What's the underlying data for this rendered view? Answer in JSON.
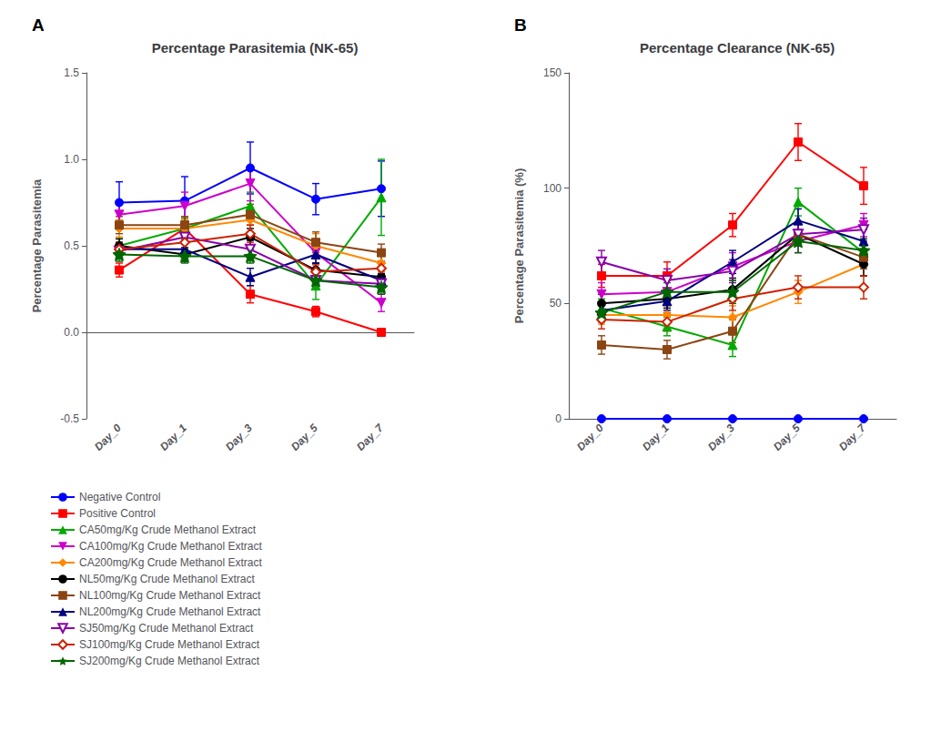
{
  "chart_data": [
    {
      "type": "line",
      "title": "Percentage Parasitemia (NK-65)",
      "ylabel": "Percentage Parasitemia",
      "annotations": [
        "A"
      ],
      "categories": [
        "Day_0",
        "Day_1",
        "Day_3",
        "Day_5",
        "Day_7"
      ],
      "ylim": [
        -0.5,
        1.5
      ],
      "yticks": [
        -0.5,
        {
          "value": 0,
          "label": "0.0"
        },
        0.5,
        {
          "value": 1,
          "label": "1.0"
        },
        1.5
      ],
      "grid": false,
      "legend": "bottom",
      "series": [
        {
          "name": "Negative Control",
          "color": "#0000FF",
          "marker": "circle",
          "values": [
            0.75,
            0.76,
            0.95,
            0.77,
            0.83
          ],
          "errors": [
            0.12,
            0.14,
            0.15,
            0.09,
            0.16
          ]
        },
        {
          "name": "Positive Control",
          "color": "#FF0000",
          "marker": "square",
          "values": [
            0.36,
            0.6,
            0.22,
            0.12,
            0.0
          ],
          "errors": [
            0.04,
            0.07,
            0.05,
            0.03,
            0.01
          ]
        },
        {
          "name": "CA50mg/Kg Crude Methanol Extract",
          "color": "#00AA00",
          "marker": "triangle-up",
          "values": [
            0.5,
            0.6,
            0.73,
            0.27,
            0.78
          ],
          "errors": [
            0.05,
            0.06,
            0.08,
            0.08,
            0.22
          ]
        },
        {
          "name": "CA100mg/Kg Crude Methanol Extract",
          "color": "#CC00CC",
          "marker": "triangle-down",
          "values": [
            0.68,
            0.73,
            0.86,
            0.46,
            0.17
          ],
          "errors": [
            0.07,
            0.08,
            0.1,
            0.06,
            0.05
          ]
        },
        {
          "name": "CA200mg/Kg Crude Methanol Extract",
          "color": "#FF8800",
          "marker": "diamond",
          "values": [
            0.6,
            0.6,
            0.65,
            0.5,
            0.4
          ],
          "errors": [
            0.05,
            0.05,
            0.07,
            0.07,
            0.05
          ]
        },
        {
          "name": "NL50mg/Kg Crude Methanol Extract",
          "color": "#000000",
          "marker": "circle",
          "values": [
            0.5,
            0.45,
            0.55,
            0.36,
            0.32
          ],
          "errors": [
            0.04,
            0.04,
            0.05,
            0.04,
            0.04
          ]
        },
        {
          "name": "NL100mg/Kg Crude Methanol Extract",
          "color": "#8B4513",
          "marker": "square",
          "values": [
            0.62,
            0.62,
            0.68,
            0.52,
            0.46
          ],
          "errors": [
            0.05,
            0.05,
            0.06,
            0.06,
            0.05
          ]
        },
        {
          "name": "NL200mg/Kg Crude Methanol Extract",
          "color": "#000080",
          "marker": "triangle-up",
          "values": [
            0.48,
            0.48,
            0.32,
            0.45,
            0.3
          ],
          "errors": [
            0.04,
            0.04,
            0.05,
            0.05,
            0.04
          ]
        },
        {
          "name": "SJ50mg/Kg Crude Methanol Extract",
          "color": "#8800AA",
          "marker": "open-triangle-down",
          "values": [
            0.47,
            0.55,
            0.48,
            0.3,
            0.28
          ],
          "errors": [
            0.04,
            0.04,
            0.05,
            0.04,
            0.04
          ]
        },
        {
          "name": "SJ100mg/Kg Crude Methanol Extract",
          "color": "#CC2200",
          "marker": "open-diamond",
          "values": [
            0.48,
            0.52,
            0.57,
            0.35,
            0.37
          ],
          "errors": [
            0.04,
            0.04,
            0.05,
            0.04,
            0.04
          ]
        },
        {
          "name": "SJ200mg/Kg Crude Methanol Extract",
          "color": "#006600",
          "marker": "star",
          "values": [
            0.45,
            0.44,
            0.44,
            0.3,
            0.26
          ],
          "errors": [
            0.04,
            0.04,
            0.04,
            0.04,
            0.04
          ]
        }
      ]
    },
    {
      "type": "line",
      "title": "Percentage Clearance (NK-65)",
      "ylabel": "Percentage Parasitemia (%)",
      "annotations": [
        "B"
      ],
      "categories": [
        "Day_0",
        "Day_1",
        "Day_3",
        "Day_5",
        "Day_7"
      ],
      "ylim": [
        0,
        150
      ],
      "yticks": [
        0,
        50,
        100,
        150
      ],
      "grid": false,
      "series": [
        {
          "name": "Negative Control",
          "color": "#0000FF",
          "marker": "circle",
          "values": [
            0,
            0,
            0,
            0,
            0
          ],
          "errors": [
            0,
            0,
            0,
            0,
            0
          ]
        },
        {
          "name": "Positive Control",
          "color": "#FF0000",
          "marker": "square",
          "values": [
            62,
            62,
            84,
            120,
            101
          ],
          "errors": [
            5,
            6,
            5,
            8,
            8
          ]
        },
        {
          "name": "CA50mg/Kg Crude Methanol Extract",
          "color": "#00AA00",
          "marker": "triangle-up",
          "values": [
            48,
            40,
            32,
            94,
            72
          ],
          "errors": [
            4,
            4,
            5,
            6,
            6
          ]
        },
        {
          "name": "CA100mg/Kg Crude Methanol Extract",
          "color": "#CC00CC",
          "marker": "triangle-down",
          "values": [
            54,
            55,
            66,
            77,
            84
          ],
          "errors": [
            5,
            5,
            6,
            5,
            5
          ]
        },
        {
          "name": "CA200mg/Kg Crude Methanol Extract",
          "color": "#FF8800",
          "marker": "diamond",
          "values": [
            45,
            45,
            44,
            55,
            67
          ],
          "errors": [
            4,
            4,
            5,
            5,
            5
          ]
        },
        {
          "name": "NL50mg/Kg Crude Methanol Extract",
          "color": "#000000",
          "marker": "circle",
          "values": [
            50,
            52,
            56,
            80,
            67
          ],
          "errors": [
            4,
            4,
            5,
            5,
            5
          ]
        },
        {
          "name": "NL100mg/Kg Crude Methanol Extract",
          "color": "#8B4513",
          "marker": "square",
          "values": [
            32,
            30,
            38,
            80,
            70
          ],
          "errors": [
            4,
            4,
            5,
            5,
            5
          ]
        },
        {
          "name": "NL200mg/Kg Crude Methanol Extract",
          "color": "#000080",
          "marker": "triangle-up",
          "values": [
            47,
            51,
            68,
            86,
            77
          ],
          "errors": [
            4,
            4,
            5,
            5,
            5
          ]
        },
        {
          "name": "SJ50mg/Kg Crude Methanol Extract",
          "color": "#8800AA",
          "marker": "open-triangle-down",
          "values": [
            68,
            60,
            64,
            80,
            82
          ],
          "errors": [
            5,
            5,
            5,
            5,
            5
          ]
        },
        {
          "name": "SJ100mg/Kg Crude Methanol Extract",
          "color": "#CC2200",
          "marker": "open-diamond",
          "values": [
            43,
            42,
            52,
            57,
            57
          ],
          "errors": [
            4,
            4,
            5,
            5,
            5
          ]
        },
        {
          "name": "SJ200mg/Kg Crude Methanol Extract",
          "color": "#006600",
          "marker": "star",
          "values": [
            46,
            55,
            55,
            77,
            73
          ],
          "errors": [
            4,
            4,
            5,
            5,
            5
          ]
        }
      ]
    }
  ]
}
